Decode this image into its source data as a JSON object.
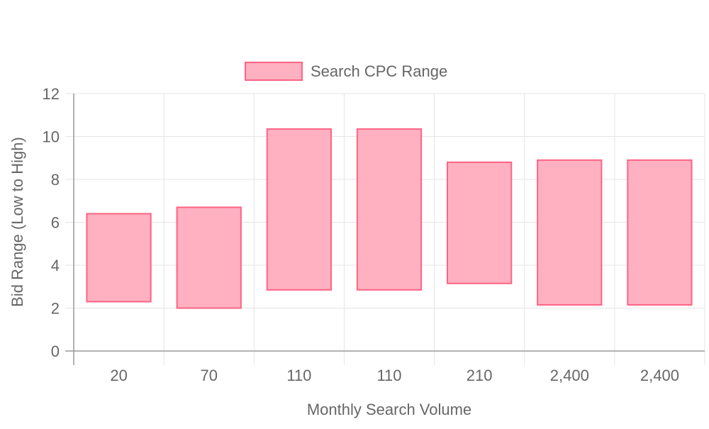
{
  "chart_data": {
    "type": "bar",
    "subtype": "floating-range",
    "categories": [
      "20",
      "70",
      "110",
      "110",
      "210",
      "2,400",
      "2,400"
    ],
    "series": [
      {
        "name": "Search CPC Range",
        "ranges": [
          [
            2.3,
            6.4
          ],
          [
            2.0,
            6.7
          ],
          [
            2.85,
            10.35
          ],
          [
            2.85,
            10.35
          ],
          [
            3.15,
            8.8
          ],
          [
            2.15,
            8.9
          ],
          [
            2.15,
            8.9
          ]
        ]
      }
    ],
    "xlabel": "Monthly Search Volume",
    "ylabel": "Bid Range (Low to High)",
    "ylim": [
      0,
      12
    ],
    "yticks": [
      "0",
      "2",
      "4",
      "6",
      "8",
      "10",
      "12"
    ],
    "grid": true,
    "legend_position": "top-center",
    "colors": {
      "bar_fill": "#ffb1c1",
      "bar_border": "#ff6384",
      "grid": "#e5e5e5",
      "axis": "#999999",
      "text": "#666666"
    }
  }
}
